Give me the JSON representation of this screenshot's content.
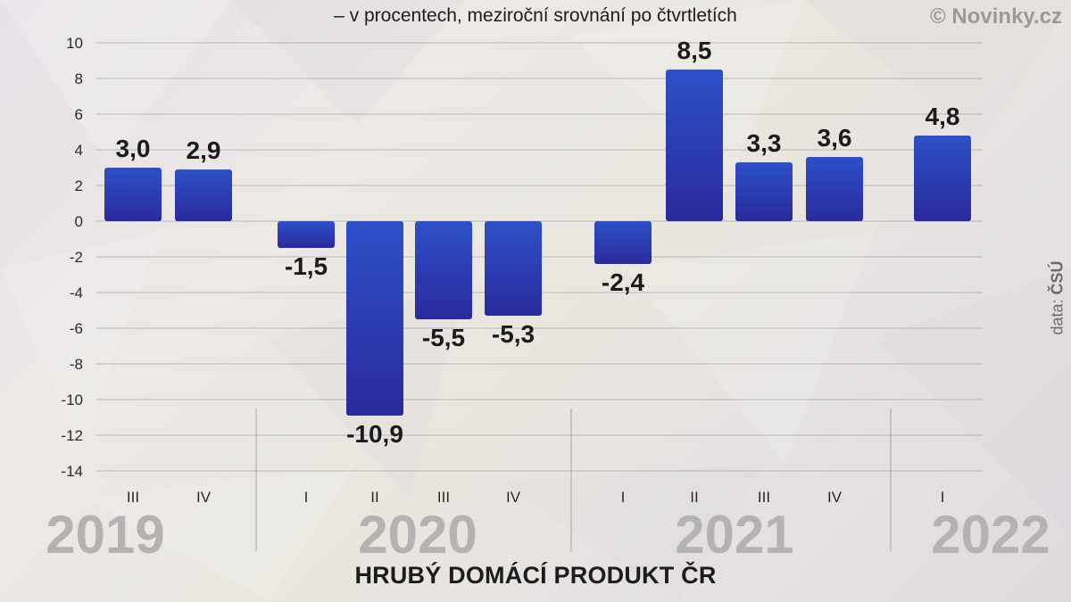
{
  "header": {
    "subtitle": "– v procentech, meziroční srovnání po čtvrtletích",
    "logo": "© Novinky.cz"
  },
  "source": {
    "prefix": "data:",
    "name": "ČSÚ"
  },
  "footer": {
    "title": "HRUBÝ DOMÁCÍ PRODUKT ČR"
  },
  "colors": {
    "bar_top": "#2d50c9",
    "bar_bottom": "#2a2a9c",
    "grid": "#b9b6b8"
  },
  "chart_data": {
    "type": "bar",
    "title": "HRUBÝ DOMÁCÍ PRODUKT ČR",
    "subtitle": "– v procentech, meziroční srovnání po čtvrtletích",
    "ylabel": "",
    "ylim": [
      -14,
      10
    ],
    "yticks": [
      10,
      8,
      6,
      4,
      2,
      0,
      -2,
      -4,
      -6,
      -8,
      -10,
      -12,
      -14
    ],
    "grid": true,
    "categories": [
      "III",
      "IV",
      "I",
      "II",
      "III",
      "IV",
      "I",
      "II",
      "III",
      "IV",
      "I"
    ],
    "years": [
      "2019",
      "2019",
      "2020",
      "2020",
      "2020",
      "2020",
      "2021",
      "2021",
      "2021",
      "2021",
      "2022"
    ],
    "values": [
      3.0,
      2.9,
      -1.5,
      -10.9,
      -5.5,
      -5.3,
      -2.4,
      8.5,
      3.3,
      3.6,
      4.8
    ],
    "data_labels": [
      "3,0",
      "2,9",
      "-1,5",
      "-10,9",
      "-5,5",
      "-5,3",
      "-2,4",
      "8,5",
      "3,3",
      "3,6",
      "4,8"
    ],
    "year_groups": [
      {
        "year": "2019"
      },
      {
        "year": "2020"
      },
      {
        "year": "2021"
      },
      {
        "year": "2022"
      }
    ]
  }
}
